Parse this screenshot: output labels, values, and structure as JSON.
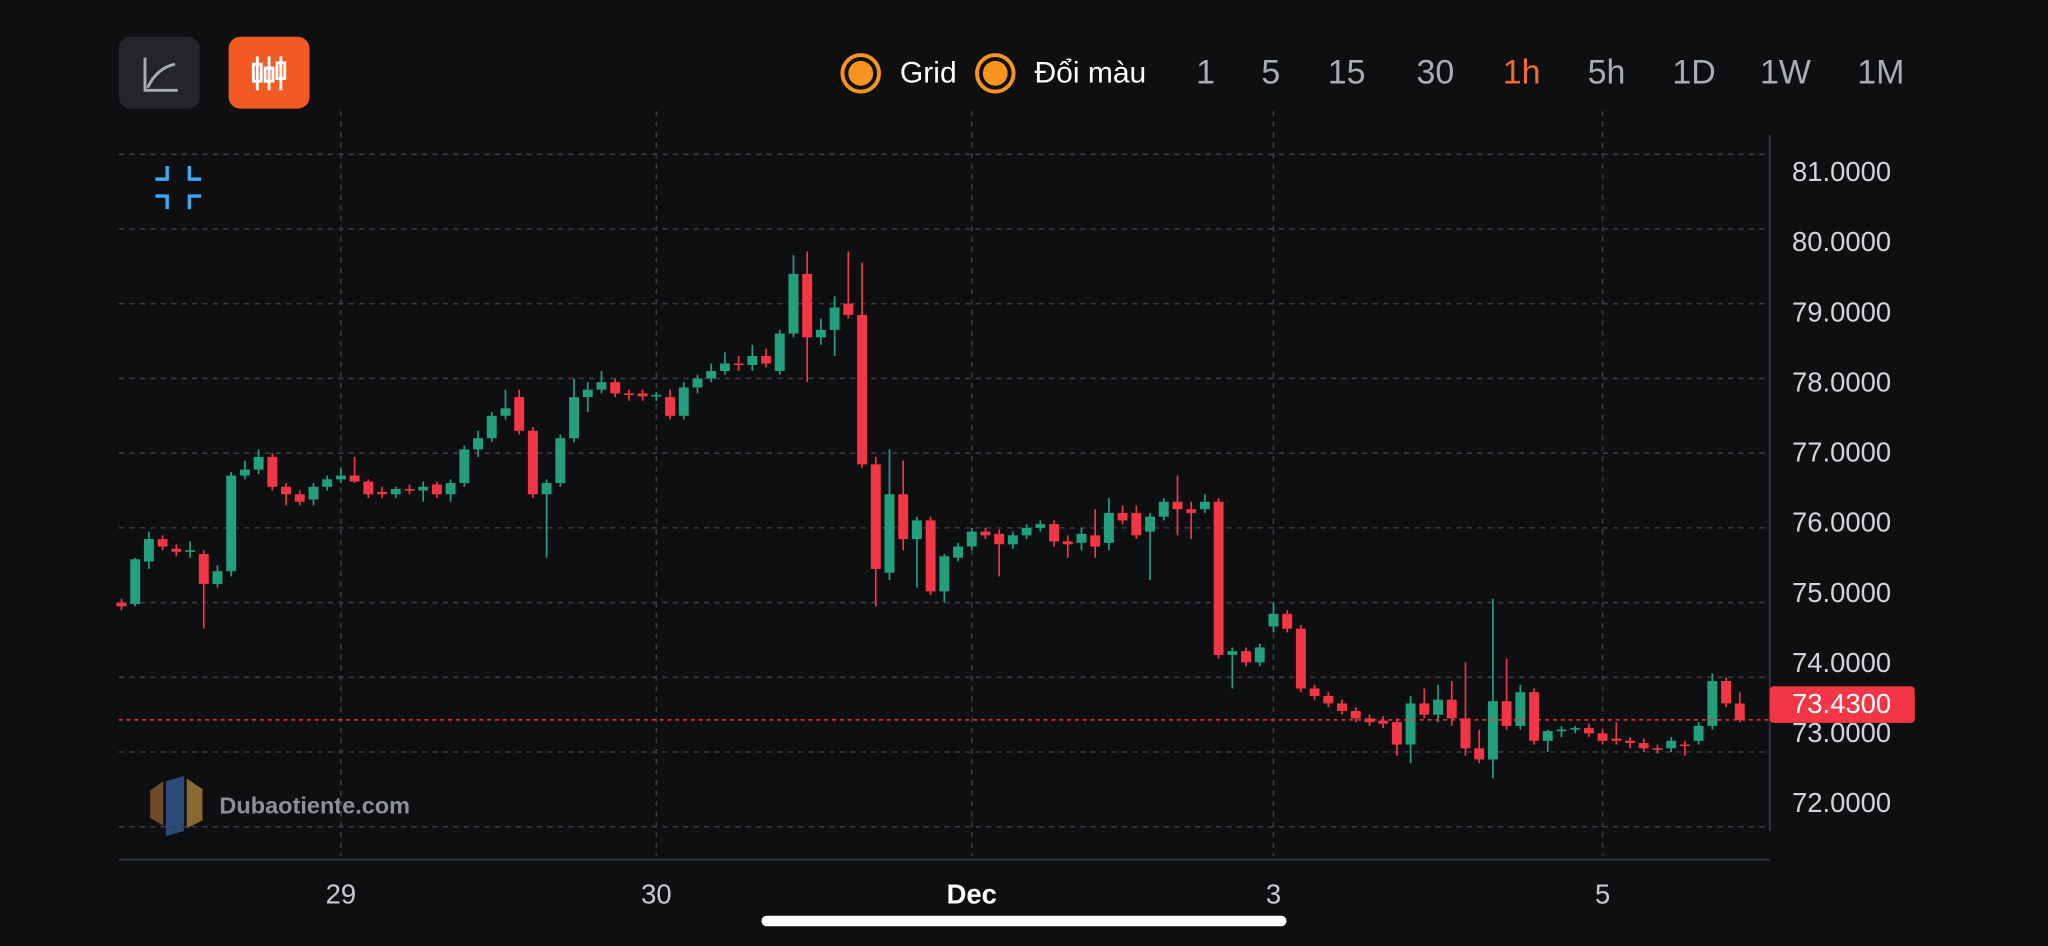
{
  "toolbar": {
    "toggles": [
      "Grid",
      "Đổi màu"
    ],
    "timeframes": [
      "1",
      "5",
      "15",
      "30",
      "1h",
      "5h",
      "1D",
      "1W",
      "1M"
    ],
    "active_timeframe": 4
  },
  "watermark": "Dubaotiente.com",
  "chart_data": {
    "type": "candlestick",
    "categories": [
      null,
      null,
      null,
      null,
      null,
      null,
      null,
      null,
      null,
      null,
      null,
      null,
      null,
      null,
      null,
      null,
      "29",
      null,
      null,
      null,
      null,
      null,
      null,
      null,
      null,
      null,
      null,
      null,
      null,
      null,
      null,
      null,
      null,
      null,
      null,
      null,
      null,
      null,
      null,
      "30",
      null,
      null,
      null,
      null,
      null,
      null,
      null,
      null,
      null,
      null,
      null,
      null,
      null,
      null,
      null,
      null,
      null,
      null,
      null,
      null,
      null,
      null,
      "Dec",
      null,
      null,
      null,
      null,
      null,
      null,
      null,
      null,
      null,
      null,
      null,
      null,
      null,
      null,
      null,
      null,
      null,
      null,
      null,
      null,
      null,
      "3",
      null,
      null,
      null,
      null,
      null,
      null,
      null,
      null,
      null,
      null,
      null,
      null,
      null,
      null,
      null,
      null,
      null,
      null,
      null,
      null,
      null,
      null,
      null,
      "5",
      null,
      null,
      null,
      null,
      null,
      null,
      null,
      null,
      null,
      null
    ],
    "open": [
      75.0,
      74.98,
      75.55,
      75.85,
      75.72,
      75.68,
      75.65,
      75.25,
      75.42,
      76.7,
      76.78,
      76.95,
      76.55,
      76.45,
      76.38,
      76.55,
      76.65,
      76.7,
      76.62,
      76.48,
      76.45,
      76.52,
      76.5,
      76.58,
      76.45,
      76.6,
      77.05,
      77.2,
      77.5,
      77.75,
      77.3,
      76.45,
      76.6,
      77.2,
      77.75,
      77.85,
      77.95,
      77.8,
      77.8,
      77.76,
      77.75,
      77.5,
      77.88,
      78.0,
      78.1,
      78.2,
      78.18,
      78.3,
      78.1,
      78.6,
      79.4,
      78.55,
      78.65,
      79.0,
      78.85,
      76.85,
      75.4,
      76.45,
      75.85,
      76.1,
      75.15,
      75.6,
      75.75,
      75.95,
      75.92,
      75.78,
      75.9,
      76.0,
      76.05,
      75.82,
      75.8,
      75.9,
      75.8,
      76.2,
      76.2,
      75.95,
      76.15,
      76.35,
      76.25,
      76.25,
      76.35,
      74.3,
      74.35,
      74.2,
      74.68,
      74.85,
      74.65,
      73.85,
      73.75,
      73.65,
      73.55,
      73.45,
      73.42,
      73.4,
      73.1,
      73.65,
      73.5,
      73.7,
      73.45,
      73.05,
      72.9,
      73.68,
      73.35,
      73.8,
      73.15,
      73.28,
      73.3,
      73.32,
      73.25,
      73.18,
      73.15,
      73.12,
      73.05,
      73.05,
      73.1,
      73.15,
      73.35,
      73.95,
      73.65
    ],
    "high": [
      75.05,
      75.6,
      75.95,
      75.9,
      75.78,
      75.82,
      75.7,
      75.5,
      76.75,
      76.9,
      77.05,
      77.0,
      76.6,
      76.5,
      76.6,
      76.7,
      76.8,
      76.95,
      76.65,
      76.55,
      76.55,
      76.58,
      76.62,
      76.62,
      76.65,
      77.1,
      77.3,
      77.55,
      77.85,
      77.85,
      77.35,
      76.65,
      77.25,
      78.0,
      77.95,
      78.1,
      78.0,
      77.85,
      77.85,
      77.82,
      77.85,
      77.95,
      78.05,
      78.2,
      78.35,
      78.3,
      78.45,
      78.4,
      78.65,
      79.65,
      79.7,
      78.8,
      79.1,
      79.7,
      79.55,
      76.95,
      77.05,
      76.9,
      76.15,
      76.15,
      75.65,
      75.8,
      76.0,
      76.0,
      75.98,
      75.95,
      76.05,
      76.1,
      76.1,
      75.9,
      76.0,
      76.25,
      76.4,
      76.3,
      76.3,
      76.2,
      76.4,
      76.7,
      76.35,
      76.45,
      76.4,
      74.4,
      74.4,
      74.45,
      75.0,
      74.9,
      74.7,
      73.9,
      73.8,
      73.7,
      73.6,
      73.5,
      73.48,
      73.45,
      73.75,
      73.85,
      73.9,
      73.95,
      74.2,
      73.3,
      75.05,
      74.25,
      73.9,
      73.85,
      73.3,
      73.35,
      73.35,
      73.38,
      73.3,
      73.4,
      73.2,
      73.18,
      73.1,
      73.2,
      73.15,
      73.4,
      74.05,
      74.0,
      73.8
    ],
    "low": [
      74.9,
      74.95,
      75.45,
      75.7,
      75.62,
      75.6,
      74.65,
      75.2,
      75.35,
      76.65,
      76.72,
      76.5,
      76.3,
      76.3,
      76.3,
      76.5,
      76.6,
      76.6,
      76.4,
      76.4,
      76.4,
      76.45,
      76.35,
      76.4,
      76.35,
      76.55,
      76.95,
      77.15,
      77.45,
      77.25,
      76.4,
      75.6,
      76.55,
      77.15,
      77.55,
      77.8,
      77.75,
      77.7,
      77.7,
      77.7,
      77.45,
      77.45,
      77.8,
      77.95,
      78.05,
      78.1,
      78.1,
      78.15,
      78.05,
      78.55,
      77.95,
      78.45,
      78.3,
      78.8,
      76.8,
      74.95,
      75.3,
      75.7,
      75.2,
      75.1,
      75.0,
      75.55,
      75.7,
      75.85,
      75.35,
      75.72,
      75.85,
      75.95,
      75.75,
      75.6,
      75.7,
      75.6,
      75.7,
      76.05,
      75.85,
      75.3,
      76.1,
      75.9,
      75.85,
      76.2,
      74.25,
      73.85,
      74.15,
      74.15,
      74.6,
      74.6,
      73.8,
      73.7,
      73.6,
      73.5,
      73.4,
      73.35,
      73.32,
      72.95,
      72.85,
      73.45,
      73.4,
      73.35,
      72.95,
      72.85,
      72.65,
      73.3,
      73.3,
      73.1,
      73.0,
      73.2,
      73.25,
      73.2,
      73.1,
      73.1,
      73.05,
      73.0,
      72.98,
      73.0,
      72.95,
      73.1,
      73.3,
      73.6,
      73.4
    ],
    "close": [
      74.95,
      75.58,
      75.85,
      75.75,
      75.68,
      75.7,
      75.25,
      75.42,
      76.7,
      76.78,
      76.95,
      76.55,
      76.45,
      76.35,
      76.55,
      76.65,
      76.7,
      76.62,
      76.45,
      76.45,
      76.52,
      76.5,
      76.55,
      76.45,
      76.6,
      77.05,
      77.2,
      77.5,
      77.6,
      77.3,
      76.45,
      76.6,
      77.2,
      77.75,
      77.85,
      77.95,
      77.8,
      77.78,
      77.76,
      77.78,
      77.5,
      77.88,
      78.0,
      78.1,
      78.2,
      78.18,
      78.3,
      78.2,
      78.6,
      79.4,
      78.55,
      78.65,
      78.95,
      78.85,
      76.85,
      75.45,
      76.45,
      75.85,
      76.1,
      75.15,
      75.62,
      75.75,
      75.95,
      75.9,
      75.78,
      75.9,
      76.0,
      76.05,
      75.82,
      75.78,
      75.92,
      75.75,
      76.2,
      76.1,
      75.9,
      76.15,
      76.35,
      76.25,
      76.2,
      76.35,
      74.3,
      74.35,
      74.2,
      74.4,
      74.85,
      74.65,
      73.85,
      73.75,
      73.65,
      73.55,
      73.45,
      73.4,
      73.38,
      73.1,
      73.65,
      73.5,
      73.7,
      73.45,
      73.05,
      72.9,
      73.68,
      73.35,
      73.8,
      73.15,
      73.28,
      73.3,
      73.32,
      73.25,
      73.15,
      73.15,
      73.12,
      73.05,
      73.03,
      73.15,
      73.08,
      73.35,
      73.95,
      73.65,
      73.43
    ],
    "up_color": "#22a07e",
    "down_color": "#f23645",
    "ylim": [
      71.6,
      81.5
    ],
    "yticks": [
      {
        "value": 72,
        "label": "72.0000"
      },
      {
        "value": 73,
        "label": "73.0000"
      },
      {
        "value": 74,
        "label": "74.0000"
      },
      {
        "value": 75,
        "label": "75.0000"
      },
      {
        "value": 76,
        "label": "76.0000"
      },
      {
        "value": 77,
        "label": "77.0000"
      },
      {
        "value": 78,
        "label": "78.0000"
      },
      {
        "value": 79,
        "label": "79.0000"
      },
      {
        "value": 80,
        "label": "80.0000"
      },
      {
        "value": 81,
        "label": "81.0000"
      }
    ],
    "last_price": {
      "value": 73.43,
      "label": "73.4300"
    },
    "grid": true
  }
}
